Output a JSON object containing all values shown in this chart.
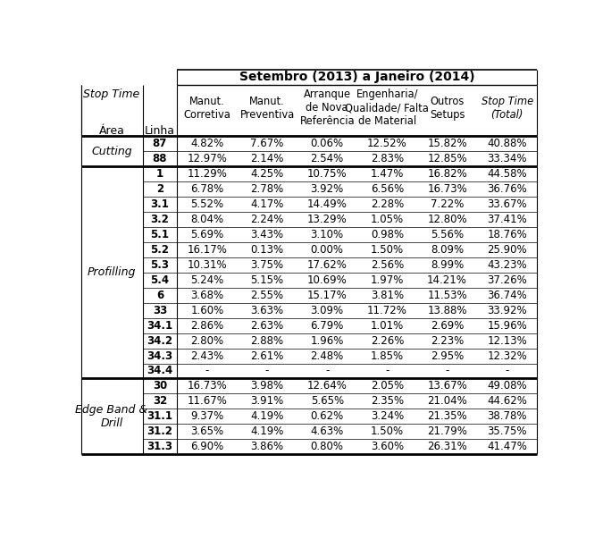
{
  "title": "Setembro (2013) a Janeiro (2014)",
  "col_headers": [
    "Manut.\nCorretiva",
    "Manut.\nPreventiva",
    "Arranque\nde Nova\nReferência",
    "Engenharia/\nQualidade/ Falta\nde Material",
    "Outros\nSetups",
    "Stop Time\n(Total)"
  ],
  "sections": [
    {
      "area": "Cutting",
      "rows": [
        {
          "linha": "87",
          "vals": [
            "4.82%",
            "7.67%",
            "0.06%",
            "12.52%",
            "15.82%",
            "40.88%"
          ]
        },
        {
          "linha": "88",
          "vals": [
            "12.97%",
            "2.14%",
            "2.54%",
            "2.83%",
            "12.85%",
            "33.34%"
          ]
        }
      ]
    },
    {
      "area": "Profilling",
      "rows": [
        {
          "linha": "1",
          "vals": [
            "11.29%",
            "4.25%",
            "10.75%",
            "1.47%",
            "16.82%",
            "44.58%"
          ]
        },
        {
          "linha": "2",
          "vals": [
            "6.78%",
            "2.78%",
            "3.92%",
            "6.56%",
            "16.73%",
            "36.76%"
          ]
        },
        {
          "linha": "3.1",
          "vals": [
            "5.52%",
            "4.17%",
            "14.49%",
            "2.28%",
            "7.22%",
            "33.67%"
          ]
        },
        {
          "linha": "3.2",
          "vals": [
            "8.04%",
            "2.24%",
            "13.29%",
            "1.05%",
            "12.80%",
            "37.41%"
          ]
        },
        {
          "linha": "5.1",
          "vals": [
            "5.69%",
            "3.43%",
            "3.10%",
            "0.98%",
            "5.56%",
            "18.76%"
          ]
        },
        {
          "linha": "5.2",
          "vals": [
            "16.17%",
            "0.13%",
            "0.00%",
            "1.50%",
            "8.09%",
            "25.90%"
          ]
        },
        {
          "linha": "5.3",
          "vals": [
            "10.31%",
            "3.75%",
            "17.62%",
            "2.56%",
            "8.99%",
            "43.23%"
          ]
        },
        {
          "linha": "5.4",
          "vals": [
            "5.24%",
            "5.15%",
            "10.69%",
            "1.97%",
            "14.21%",
            "37.26%"
          ]
        },
        {
          "linha": "6",
          "vals": [
            "3.68%",
            "2.55%",
            "15.17%",
            "3.81%",
            "11.53%",
            "36.74%"
          ]
        },
        {
          "linha": "33",
          "vals": [
            "1.60%",
            "3.63%",
            "3.09%",
            "11.72%",
            "13.88%",
            "33.92%"
          ]
        },
        {
          "linha": "34.1",
          "vals": [
            "2.86%",
            "2.63%",
            "6.79%",
            "1.01%",
            "2.69%",
            "15.96%"
          ]
        },
        {
          "linha": "34.2",
          "vals": [
            "2.80%",
            "2.88%",
            "1.96%",
            "2.26%",
            "2.23%",
            "12.13%"
          ]
        },
        {
          "linha": "34.3",
          "vals": [
            "2.43%",
            "2.61%",
            "2.48%",
            "1.85%",
            "2.95%",
            "12.32%"
          ]
        },
        {
          "linha": "34.4",
          "vals": [
            "-",
            "-",
            "-",
            "-",
            "-",
            "-"
          ]
        }
      ]
    },
    {
      "area": "Edge Band &\nDrill",
      "rows": [
        {
          "linha": "30",
          "vals": [
            "16.73%",
            "3.98%",
            "12.64%",
            "2.05%",
            "13.67%",
            "49.08%"
          ]
        },
        {
          "linha": "32",
          "vals": [
            "11.67%",
            "3.91%",
            "5.65%",
            "2.35%",
            "21.04%",
            "44.62%"
          ]
        },
        {
          "linha": "31.1",
          "vals": [
            "9.37%",
            "4.19%",
            "0.62%",
            "3.24%",
            "21.35%",
            "38.78%"
          ]
        },
        {
          "linha": "31.2",
          "vals": [
            "3.65%",
            "4.19%",
            "4.63%",
            "1.50%",
            "21.79%",
            "35.75%"
          ]
        },
        {
          "linha": "31.3",
          "vals": [
            "6.90%",
            "3.86%",
            "0.80%",
            "3.60%",
            "26.31%",
            "41.47%"
          ]
        }
      ]
    }
  ]
}
